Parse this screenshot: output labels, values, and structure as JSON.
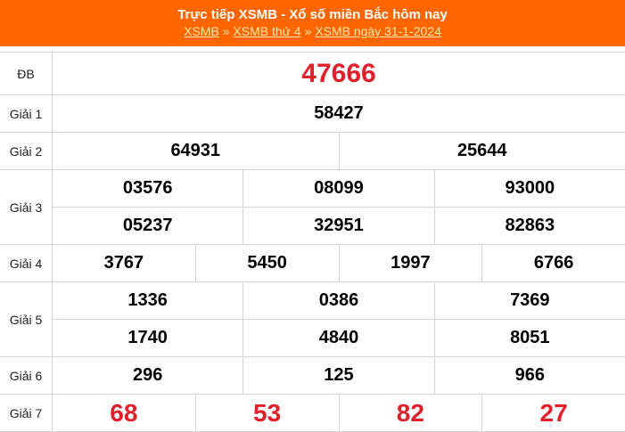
{
  "header": {
    "title": "Trực tiếp XSMB - Xổ số miền Bắc hôm nay",
    "breadcrumb": [
      "XSMB",
      "XSMB thứ 4",
      "XSMB ngày 31-1-2024"
    ],
    "separator": "»"
  },
  "colors": {
    "header_bg": "#ff6600",
    "highlight": "#e0202a"
  },
  "prizes": [
    {
      "label": "ĐB",
      "lines": [
        [
          "47666"
        ]
      ],
      "red": true
    },
    {
      "label": "Giải 1",
      "lines": [
        [
          "58427"
        ]
      ]
    },
    {
      "label": "Giải 2",
      "lines": [
        [
          "64931",
          "25644"
        ]
      ]
    },
    {
      "label": "Giải 3",
      "lines": [
        [
          "03576",
          "08099",
          "93000"
        ],
        [
          "05237",
          "32951",
          "82863"
        ]
      ]
    },
    {
      "label": "Giải 4",
      "lines": [
        [
          "3767",
          "5450",
          "1997",
          "6766"
        ]
      ]
    },
    {
      "label": "Giải 5",
      "lines": [
        [
          "1336",
          "0386",
          "7369"
        ],
        [
          "1740",
          "4840",
          "8051"
        ]
      ]
    },
    {
      "label": "Giải 6",
      "lines": [
        [
          "296",
          "125",
          "966"
        ]
      ]
    },
    {
      "label": "Giải 7",
      "lines": [
        [
          "68",
          "53",
          "82",
          "27"
        ]
      ],
      "red": true
    }
  ]
}
